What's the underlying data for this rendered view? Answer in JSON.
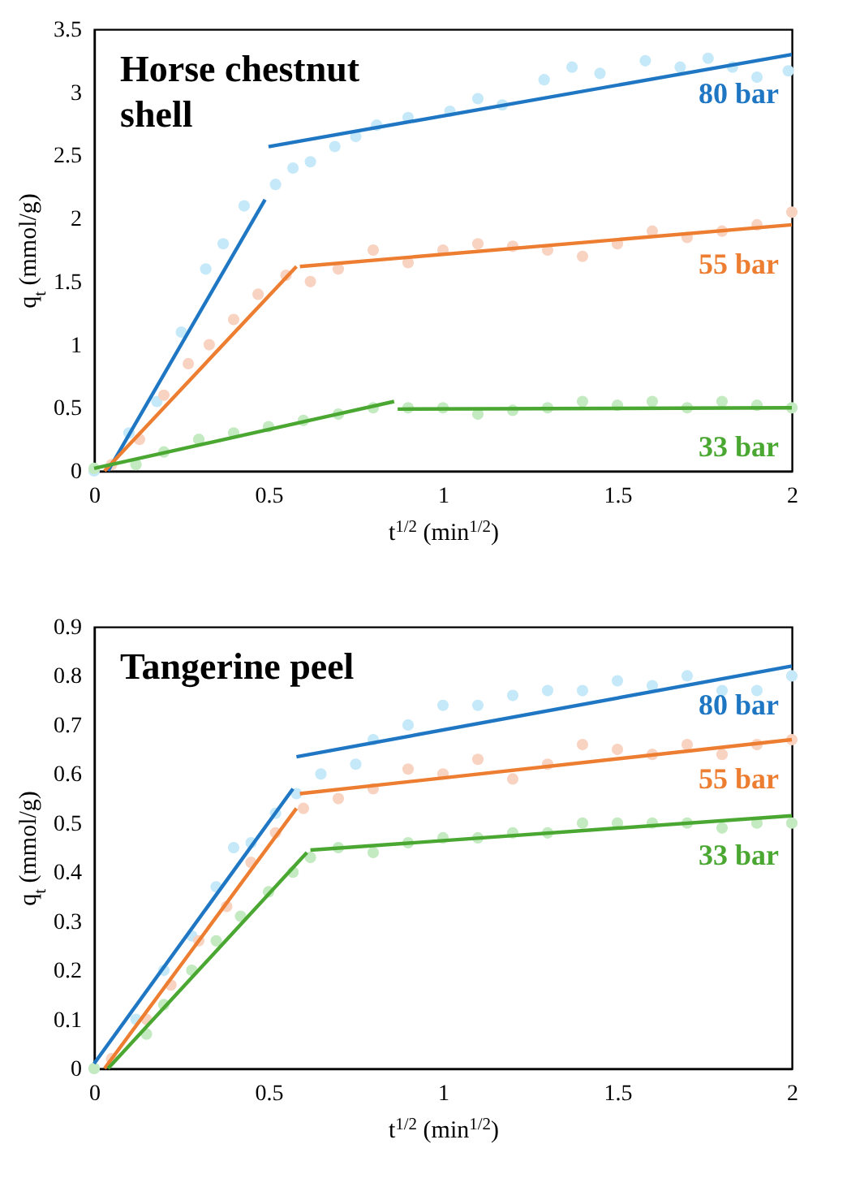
{
  "chart_data": [
    {
      "type": "scatter",
      "title": "Horse chestnut shell",
      "xlabel": "t$^{1/2}$ (min$^{1/2}$)",
      "ylabel": "q$_{t}$ (mmol/g)",
      "xlim": [
        0,
        2
      ],
      "ylim": [
        0,
        3.5
      ],
      "xticks": [
        0,
        0.5,
        1,
        1.5,
        2
      ],
      "yticks": [
        0,
        0.5,
        1,
        1.5,
        2,
        2.5,
        3,
        3.5
      ],
      "line_style": "solid",
      "series": [
        {
          "type": "scatter",
          "marker": "circle",
          "color": "#c5e9f8",
          "x": [
            0,
            0.1,
            0.18,
            0.25,
            0.32,
            0.37,
            0.43,
            0.52,
            0.57,
            0.62,
            0.69,
            0.75,
            0.81,
            0.9,
            1.02,
            1.1,
            1.17,
            1.29,
            1.37,
            1.45,
            1.58,
            1.68,
            1.76,
            1.83,
            1.9,
            1.99
          ],
          "values": [
            0,
            0.3,
            0.55,
            1.1,
            1.6,
            1.8,
            2.1,
            2.27,
            2.4,
            2.45,
            2.57,
            2.65,
            2.74,
            2.8,
            2.85,
            2.95,
            2.9,
            3.1,
            3.2,
            3.15,
            3.25,
            3.2,
            3.27,
            3.2,
            3.12,
            3.17
          ]
        },
        {
          "type": "scatter",
          "marker": "circle",
          "color": "#f9d3c1",
          "x": [
            0.05,
            0.13,
            0.2,
            0.27,
            0.33,
            0.4,
            0.47,
            0.55,
            0.62,
            0.7,
            0.8,
            0.9,
            1.0,
            1.1,
            1.2,
            1.3,
            1.4,
            1.5,
            1.6,
            1.7,
            1.8,
            1.9,
            2.0
          ],
          "values": [
            0.05,
            0.25,
            0.6,
            0.85,
            1.0,
            1.2,
            1.4,
            1.55,
            1.5,
            1.6,
            1.75,
            1.65,
            1.75,
            1.8,
            1.78,
            1.75,
            1.7,
            1.8,
            1.9,
            1.85,
            1.9,
            1.95,
            2.05
          ]
        },
        {
          "type": "scatter",
          "marker": "circle",
          "color": "#c3eac0",
          "x": [
            0,
            0.12,
            0.2,
            0.3,
            0.4,
            0.5,
            0.6,
            0.7,
            0.8,
            0.9,
            1.0,
            1.1,
            1.2,
            1.3,
            1.4,
            1.5,
            1.6,
            1.7,
            1.8,
            1.9,
            2.0
          ],
          "values": [
            0.02,
            0.05,
            0.15,
            0.25,
            0.3,
            0.35,
            0.4,
            0.45,
            0.5,
            0.5,
            0.5,
            0.45,
            0.48,
            0.5,
            0.55,
            0.52,
            0.55,
            0.5,
            0.55,
            0.52,
            0.5
          ]
        },
        {
          "type": "line",
          "color": "#1f77c4",
          "x": [
            0.04,
            0.49
          ],
          "values": [
            0,
            2.15
          ]
        },
        {
          "type": "line",
          "name": "80 bar",
          "color": "#1f77c4",
          "x": [
            0.5,
            2.0
          ],
          "values": [
            2.57,
            3.3
          ]
        },
        {
          "type": "line",
          "color": "#ed7d31",
          "x": [
            0.03,
            0.58
          ],
          "values": [
            0,
            1.62
          ]
        },
        {
          "type": "line",
          "name": "55 bar",
          "color": "#ed7d31",
          "x": [
            0.59,
            2.0
          ],
          "values": [
            1.62,
            1.95
          ]
        },
        {
          "type": "line",
          "color": "#4aa832",
          "x": [
            0,
            0.86
          ],
          "values": [
            0.02,
            0.55
          ]
        },
        {
          "type": "line",
          "name": "33 bar",
          "color": "#4aa832",
          "x": [
            0.87,
            2.0
          ],
          "values": [
            0.49,
            0.5
          ]
        }
      ]
    },
    {
      "type": "scatter",
      "title": "Tangerine peel",
      "xlabel": "t$^{1/2}$ (min$^{1/2}$)",
      "ylabel": "q$_{t}$ (mmol/g)",
      "xlim": [
        0,
        2
      ],
      "ylim": [
        0,
        0.9
      ],
      "xticks": [
        0,
        0.5,
        1,
        1.5,
        2
      ],
      "yticks": [
        0,
        0.1,
        0.2,
        0.3,
        0.4,
        0.5,
        0.6,
        0.7,
        0.8,
        0.9
      ],
      "line_style": "solid",
      "series": [
        {
          "type": "scatter",
          "marker": "circle",
          "color": "#c5e9f8",
          "x": [
            0,
            0.12,
            0.2,
            0.28,
            0.35,
            0.4,
            0.45,
            0.52,
            0.58,
            0.65,
            0.75,
            0.8,
            0.9,
            1.0,
            1.1,
            1.2,
            1.3,
            1.4,
            1.5,
            1.6,
            1.7,
            1.8,
            1.9,
            2.0
          ],
          "values": [
            0,
            0.1,
            0.2,
            0.27,
            0.37,
            0.45,
            0.46,
            0.52,
            0.56,
            0.6,
            0.62,
            0.67,
            0.7,
            0.74,
            0.74,
            0.76,
            0.77,
            0.77,
            0.79,
            0.78,
            0.8,
            0.77,
            0.77,
            0.8
          ]
        },
        {
          "type": "scatter",
          "marker": "circle",
          "color": "#f9d3c1",
          "x": [
            0.05,
            0.15,
            0.22,
            0.3,
            0.38,
            0.45,
            0.52,
            0.6,
            0.7,
            0.8,
            0.9,
            1.0,
            1.1,
            1.2,
            1.3,
            1.4,
            1.5,
            1.6,
            1.7,
            1.8,
            1.9,
            2.0
          ],
          "values": [
            0.02,
            0.1,
            0.17,
            0.26,
            0.33,
            0.42,
            0.48,
            0.53,
            0.55,
            0.57,
            0.61,
            0.6,
            0.63,
            0.59,
            0.62,
            0.66,
            0.65,
            0.64,
            0.66,
            0.64,
            0.66,
            0.67
          ]
        },
        {
          "type": "scatter",
          "marker": "circle",
          "color": "#c3eac0",
          "x": [
            0,
            0.15,
            0.2,
            0.28,
            0.35,
            0.42,
            0.5,
            0.57,
            0.62,
            0.7,
            0.8,
            0.9,
            1.0,
            1.1,
            1.2,
            1.3,
            1.4,
            1.5,
            1.6,
            1.7,
            1.8,
            1.9,
            2.0
          ],
          "values": [
            0,
            0.07,
            0.13,
            0.2,
            0.26,
            0.31,
            0.36,
            0.4,
            0.43,
            0.45,
            0.44,
            0.46,
            0.47,
            0.47,
            0.48,
            0.48,
            0.5,
            0.5,
            0.5,
            0.5,
            0.49,
            0.5,
            0.5
          ]
        },
        {
          "type": "line",
          "color": "#1f77c4",
          "x": [
            0,
            0.57
          ],
          "values": [
            0.01,
            0.57
          ]
        },
        {
          "type": "line",
          "name": "80 bar",
          "color": "#1f77c4",
          "x": [
            0.58,
            2.0
          ],
          "values": [
            0.635,
            0.82
          ]
        },
        {
          "type": "line",
          "color": "#ed7d31",
          "x": [
            0.03,
            0.58
          ],
          "values": [
            0,
            0.53
          ]
        },
        {
          "type": "line",
          "name": "55 bar",
          "color": "#ed7d31",
          "x": [
            0.59,
            2.0
          ],
          "values": [
            0.56,
            0.67
          ]
        },
        {
          "type": "line",
          "color": "#4aa832",
          "x": [
            0.04,
            0.61
          ],
          "values": [
            0,
            0.44
          ]
        },
        {
          "type": "line",
          "name": "33 bar",
          "color": "#4aa832",
          "x": [
            0.62,
            2.0
          ],
          "values": [
            0.445,
            0.515
          ]
        }
      ]
    }
  ]
}
